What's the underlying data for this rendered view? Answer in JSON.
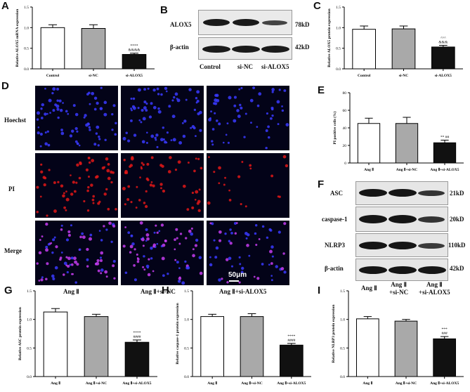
{
  "panels": {
    "A": "A",
    "B": "B",
    "C": "C",
    "D": "D",
    "E": "E",
    "F": "F",
    "G": "G",
    "H": "H",
    "I": "I"
  },
  "chart_data": [
    {
      "id": "A",
      "type": "bar",
      "categories": [
        "Control",
        "si-NC",
        "si-ALOX5"
      ],
      "values": [
        1.0,
        0.98,
        0.35
      ],
      "errors": [
        0.07,
        0.09,
        0.03
      ],
      "colors": [
        "#ffffff",
        "#a9a9a9",
        "#111111"
      ],
      "ylabel": "Relative ALOX5 mRNA expression",
      "ylim": [
        0,
        1.5
      ],
      "yticks": [
        "0.0",
        "0.5",
        "1.0",
        "1.5"
      ],
      "annotations": [
        {
          "index": 2,
          "lines": [
            "****",
            "&&&&"
          ]
        }
      ]
    },
    {
      "id": "C",
      "type": "bar",
      "categories": [
        "Control",
        "si-NC",
        "si-ALOX5"
      ],
      "values": [
        0.96,
        0.97,
        0.53
      ],
      "errors": [
        0.08,
        0.07,
        0.04
      ],
      "colors": [
        "#ffffff",
        "#a9a9a9",
        "#111111"
      ],
      "ylabel": "Relative ALOX5 protein expression",
      "ylim": [
        0,
        1.5
      ],
      "yticks": [
        "0.0",
        "0.5",
        "1.0",
        "1.5"
      ],
      "annotations": [
        {
          "index": 2,
          "lines": [
            "^^^",
            "&&&"
          ]
        }
      ]
    },
    {
      "id": "E",
      "type": "bar",
      "categories": [
        "Ang Ⅱ",
        "Ang Ⅱ+si-NC",
        "Ang Ⅱ+si-ALOX5"
      ],
      "values": [
        45,
        45,
        23
      ],
      "errors": [
        6,
        7,
        3
      ],
      "colors": [
        "#ffffff",
        "#a9a9a9",
        "#111111"
      ],
      "ylabel": "PI positive cells (%)",
      "ylim": [
        0,
        80
      ],
      "yticks": [
        "0",
        "20",
        "40",
        "60",
        "80"
      ],
      "annotations": [
        {
          "index": 2,
          "lines": [
            "** ##"
          ]
        }
      ]
    },
    {
      "id": "G",
      "type": "bar",
      "categories": [
        "Ang Ⅱ",
        "Ang Ⅱ+si-NC",
        "Ang Ⅱ+si-ALOX5"
      ],
      "values": [
        1.13,
        1.05,
        0.6
      ],
      "errors": [
        0.06,
        0.04,
        0.04
      ],
      "colors": [
        "#ffffff",
        "#a9a9a9",
        "#111111"
      ],
      "ylabel": "Relative ASC protein expression",
      "ylim": [
        0,
        1.5
      ],
      "yticks": [
        "0.0",
        "0.5",
        "1.0",
        "1.5"
      ],
      "annotations": [
        {
          "index": 2,
          "lines": [
            "****",
            "####"
          ]
        }
      ]
    },
    {
      "id": "H",
      "type": "bar",
      "categories": [
        "Ang Ⅱ",
        "Ang Ⅱ+si-NC",
        "Ang Ⅱ+si-ALOX5"
      ],
      "values": [
        1.05,
        1.05,
        0.55
      ],
      "errors": [
        0.04,
        0.05,
        0.03
      ],
      "colors": [
        "#ffffff",
        "#a9a9a9",
        "#111111"
      ],
      "ylabel": "Relative caspase-1 protein expression",
      "ylim": [
        0,
        1.5
      ],
      "yticks": [
        "0.0",
        "0.5",
        "1.0",
        "1.5"
      ],
      "annotations": [
        {
          "index": 2,
          "lines": [
            "****",
            "####"
          ]
        }
      ]
    },
    {
      "id": "I",
      "type": "bar",
      "categories": [
        "Ang Ⅱ",
        "Ang Ⅱ+si-NC",
        "Ang Ⅱ+si-ALOX5"
      ],
      "values": [
        1.01,
        0.97,
        0.66
      ],
      "errors": [
        0.04,
        0.03,
        0.04
      ],
      "colors": [
        "#ffffff",
        "#a9a9a9",
        "#111111"
      ],
      "ylabel": "Relative NLRP3 protein expression",
      "ylim": [
        0,
        1.5
      ],
      "yticks": [
        "0.0",
        "0.5",
        "1.0",
        "1.5"
      ],
      "annotations": [
        {
          "index": 2,
          "lines": [
            "***",
            "###"
          ]
        }
      ]
    }
  ],
  "blot_B": {
    "proteins": [
      {
        "name": "ALOX5",
        "size": "78kD"
      },
      {
        "name": "β-actin",
        "size": "42kD"
      }
    ],
    "lanes": [
      "Control",
      "si-NC",
      "si-ALOX5"
    ]
  },
  "blot_F": {
    "proteins": [
      {
        "name": "ASC",
        "size": "21kD"
      },
      {
        "name": "caspase-1",
        "size": "20kD"
      },
      {
        "name": "NLRP3",
        "size": "110kD"
      },
      {
        "name": "β-actin",
        "size": "42kD"
      }
    ],
    "lanes": [
      "Ang Ⅱ",
      "Ang Ⅱ\n+si-NC",
      "Ang Ⅱ\n+si-ALOX5"
    ]
  },
  "fluor_D": {
    "rows": [
      "Hoechst",
      "PI",
      "Merge"
    ],
    "cols": [
      "Ang Ⅱ",
      "Ang Ⅱ+si-NC",
      "Ang Ⅱ+si-ALOX5"
    ],
    "scale_bar": "50μm"
  },
  "colors": {
    "hoechst": "#3a3aff",
    "pi": "#e01818",
    "merge": "#c63cf0",
    "background": "#030318"
  }
}
